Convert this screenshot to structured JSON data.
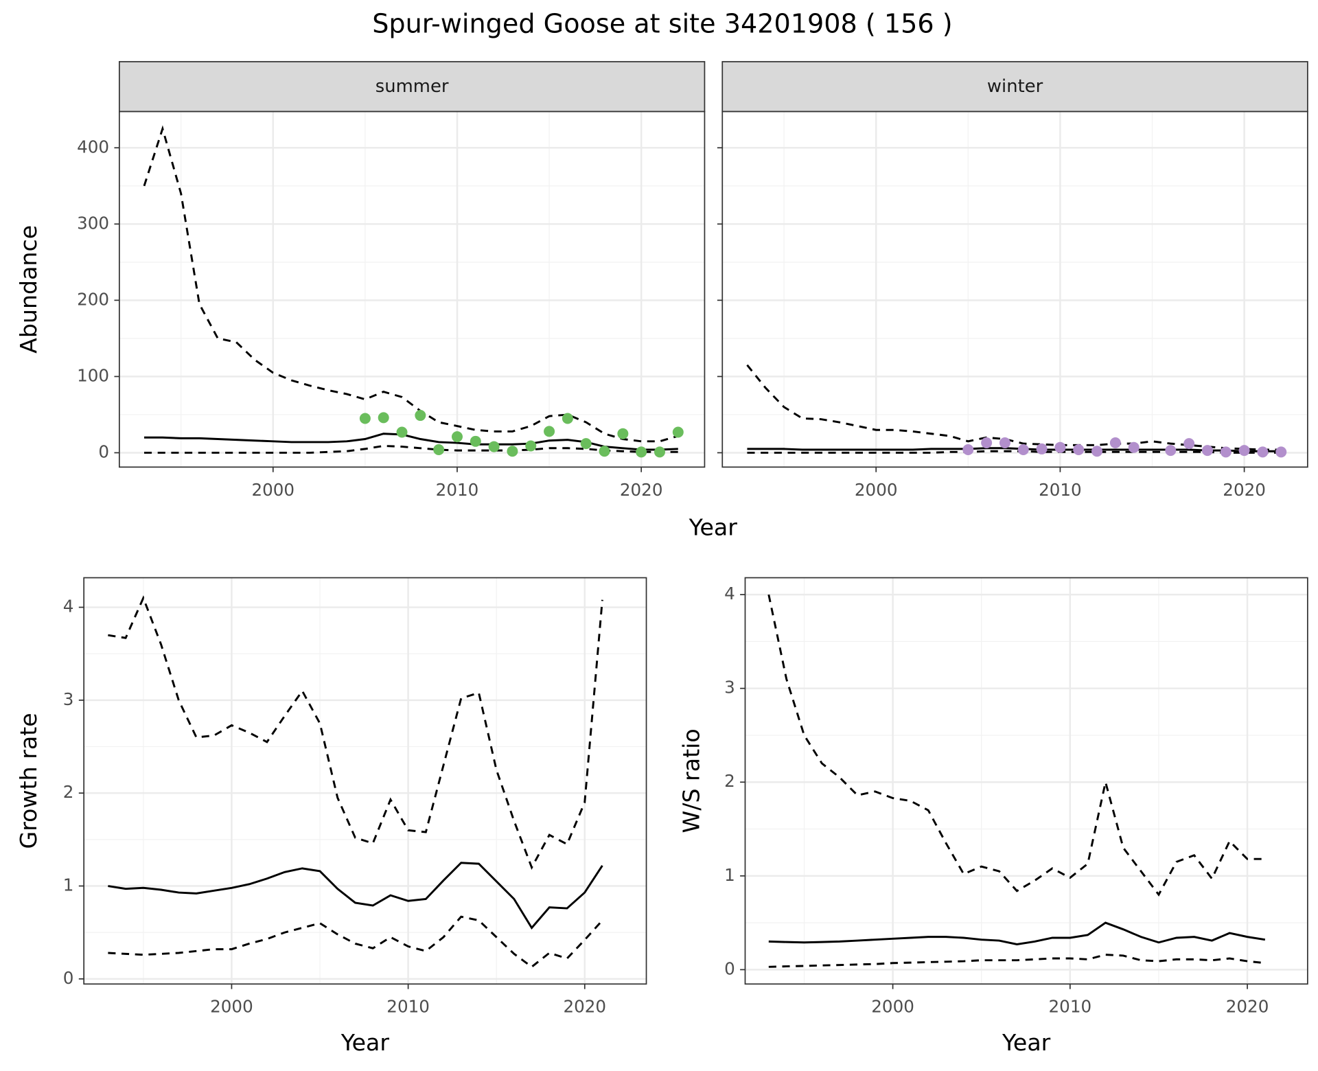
{
  "title": "Spur-winged Goose at site 34201908 ( 156 )",
  "chart_data": [
    {
      "type": "line",
      "facet": "summer",
      "xlabel": "Year",
      "ylabel": "Abundance",
      "show_yticklabels": true,
      "xlim": [
        1991.65,
        2023.44
      ],
      "ylim": [
        -18.8,
        447.6
      ],
      "xticks": [
        2000,
        2010,
        2020
      ],
      "xminor": [
        1995,
        2005,
        2015
      ],
      "yticks": [
        0,
        100,
        200,
        300,
        400
      ],
      "yminor": [
        50,
        150,
        250,
        350
      ],
      "grid": true,
      "x": [
        1993,
        1994,
        1995,
        1996,
        1997,
        1998,
        1999,
        2000,
        2001,
        2002,
        2003,
        2004,
        2005,
        2006,
        2007,
        2008,
        2009,
        2010,
        2011,
        2012,
        2013,
        2014,
        2015,
        2016,
        2017,
        2018,
        2019,
        2020,
        2021,
        2022
      ],
      "series": [
        {
          "color": "#000000",
          "dash": false,
          "values": [
            20,
            20,
            19,
            19,
            18,
            17,
            16,
            15,
            14,
            14,
            14,
            15,
            18,
            25,
            24,
            18,
            14,
            13,
            11,
            11,
            11,
            12,
            16,
            17,
            14,
            8,
            6,
            4,
            4,
            5
          ]
        },
        {
          "color": "#000000",
          "dash": true,
          "values": [
            0,
            0,
            0,
            0,
            0,
            0,
            0,
            0,
            0,
            0,
            1,
            2,
            5,
            9,
            8,
            6,
            4,
            3,
            3,
            3,
            3,
            4,
            6,
            6,
            5,
            3,
            2,
            1,
            1,
            1
          ]
        },
        {
          "color": "#000000",
          "dash": true,
          "values": [
            350,
            425,
            340,
            195,
            150,
            145,
            122,
            105,
            95,
            88,
            82,
            77,
            70,
            80,
            73,
            55,
            40,
            35,
            30,
            28,
            28,
            35,
            48,
            50,
            40,
            25,
            18,
            15,
            15,
            22
          ]
        }
      ],
      "points": {
        "color": "#6abd5c",
        "x": [
          2005,
          2006,
          2007,
          2008,
          2009,
          2010,
          2011,
          2012,
          2013,
          2014,
          2015,
          2016,
          2017,
          2018,
          2019,
          2020,
          2021,
          2022
        ],
        "values": [
          45,
          46,
          27,
          49,
          4,
          21,
          15,
          8,
          2,
          9,
          28,
          45,
          12,
          2,
          25,
          1,
          1,
          27
        ]
      }
    },
    {
      "type": "line",
      "facet": "winter",
      "show_yticklabels": false,
      "xlim": [
        1991.65,
        2023.44
      ],
      "ylim": [
        -18.8,
        447.6
      ],
      "xticks": [
        2000,
        2010,
        2020
      ],
      "xminor": [
        1995,
        2005,
        2015
      ],
      "yticks": [
        0,
        100,
        200,
        300,
        400
      ],
      "yminor": [
        50,
        150,
        250,
        350
      ],
      "grid": true,
      "x": [
        1993,
        1994,
        1995,
        1996,
        1997,
        1998,
        1999,
        2000,
        2001,
        2002,
        2003,
        2004,
        2005,
        2006,
        2007,
        2008,
        2009,
        2010,
        2011,
        2012,
        2013,
        2014,
        2015,
        2016,
        2017,
        2018,
        2019,
        2020,
        2021,
        2022
      ],
      "series": [
        {
          "color": "#000000",
          "dash": false,
          "values": [
            5,
            5,
            5,
            4,
            4,
            4,
            4,
            4,
            4,
            4,
            5,
            5,
            5,
            6,
            6,
            5,
            4,
            4,
            4,
            4,
            4,
            4,
            4,
            4,
            4,
            3,
            3,
            2,
            2,
            2
          ]
        },
        {
          "color": "#000000",
          "dash": true,
          "values": [
            0,
            0,
            0,
            0,
            0,
            0,
            0,
            0,
            0,
            0,
            0,
            1,
            1,
            2,
            2,
            2,
            1,
            1,
            1,
            1,
            1,
            1,
            1,
            1,
            1,
            1,
            0,
            0,
            0,
            0
          ]
        },
        {
          "color": "#000000",
          "dash": true,
          "values": [
            115,
            85,
            60,
            45,
            44,
            40,
            35,
            30,
            30,
            28,
            25,
            22,
            15,
            20,
            18,
            12,
            11,
            10,
            10,
            10,
            12,
            12,
            15,
            12,
            10,
            8,
            6,
            5,
            4,
            4
          ]
        }
      ],
      "points": {
        "color": "#b28fcc",
        "x": [
          2005,
          2006,
          2007,
          2008,
          2009,
          2010,
          2011,
          2012,
          2013,
          2014,
          2016,
          2017,
          2018,
          2019,
          2020,
          2021,
          2022
        ],
        "values": [
          4,
          13,
          13,
          4,
          5,
          7,
          4,
          2,
          13,
          7,
          3,
          12,
          3,
          1,
          3,
          1,
          1
        ]
      }
    },
    {
      "type": "line",
      "xlabel": "Year",
      "ylabel": "Growth rate",
      "show_yticklabels": true,
      "xlim": [
        1991.63,
        2023.49
      ],
      "ylim": [
        -0.055,
        4.318
      ],
      "xticks": [
        2000,
        2010,
        2020
      ],
      "xminor": [
        1995,
        2005,
        2015
      ],
      "yticks": [
        0,
        1,
        2,
        3,
        4
      ],
      "yminor": [
        0.5,
        1.5,
        2.5,
        3.5
      ],
      "grid": true,
      "x": [
        1993,
        1994,
        1995,
        1996,
        1997,
        1998,
        1999,
        2000,
        2001,
        2002,
        2003,
        2004,
        2005,
        2006,
        2007,
        2008,
        2009,
        2010,
        2011,
        2012,
        2013,
        2014,
        2015,
        2016,
        2017,
        2018,
        2019,
        2020,
        2021
      ],
      "series": [
        {
          "color": "#000000",
          "dash": false,
          "values": [
            1.0,
            0.97,
            0.98,
            0.96,
            0.93,
            0.92,
            0.95,
            0.98,
            1.02,
            1.08,
            1.15,
            1.19,
            1.16,
            0.97,
            0.82,
            0.79,
            0.9,
            0.84,
            0.86,
            1.06,
            1.25,
            1.24,
            1.05,
            0.86,
            0.55,
            0.77,
            0.76,
            0.93,
            1.22
          ]
        },
        {
          "color": "#000000",
          "dash": true,
          "values": [
            0.28,
            0.27,
            0.26,
            0.27,
            0.28,
            0.3,
            0.32,
            0.32,
            0.38,
            0.43,
            0.5,
            0.55,
            0.6,
            0.48,
            0.38,
            0.33,
            0.45,
            0.35,
            0.3,
            0.45,
            0.67,
            0.63,
            0.45,
            0.27,
            0.13,
            0.28,
            0.22,
            0.42,
            0.63
          ]
        },
        {
          "color": "#000000",
          "dash": true,
          "values": [
            3.7,
            3.67,
            4.1,
            3.6,
            3.0,
            2.6,
            2.62,
            2.73,
            2.65,
            2.55,
            2.83,
            3.1,
            2.75,
            1.95,
            1.52,
            1.46,
            1.93,
            1.6,
            1.58,
            2.3,
            3.02,
            3.08,
            2.25,
            1.7,
            1.2,
            1.55,
            1.45,
            1.9,
            4.08
          ]
        }
      ]
    },
    {
      "type": "line",
      "xlabel": "Year",
      "ylabel": "W/S ratio",
      "show_yticklabels": true,
      "xlim": [
        1991.67,
        2023.4
      ],
      "ylim": [
        -0.153,
        4.18
      ],
      "xticks": [
        2000,
        2010,
        2020
      ],
      "xminor": [
        1995,
        2005,
        2015
      ],
      "yticks": [
        0,
        1,
        2,
        3,
        4
      ],
      "yminor": [
        0.5,
        1.5,
        2.5,
        3.5
      ],
      "grid": true,
      "x": [
        1993,
        1994,
        1995,
        1996,
        1997,
        1998,
        1999,
        2000,
        2001,
        2002,
        2003,
        2004,
        2005,
        2006,
        2007,
        2008,
        2009,
        2010,
        2011,
        2012,
        2013,
        2014,
        2015,
        2016,
        2017,
        2018,
        2019,
        2020,
        2021
      ],
      "series": [
        {
          "color": "#000000",
          "dash": false,
          "values": [
            0.3,
            0.295,
            0.29,
            0.295,
            0.3,
            0.31,
            0.32,
            0.33,
            0.34,
            0.35,
            0.35,
            0.34,
            0.32,
            0.31,
            0.27,
            0.3,
            0.34,
            0.34,
            0.37,
            0.5,
            0.43,
            0.35,
            0.29,
            0.34,
            0.35,
            0.31,
            0.39,
            0.35,
            0.32
          ]
        },
        {
          "color": "#000000",
          "dash": true,
          "values": [
            0.03,
            0.035,
            0.04,
            0.045,
            0.05,
            0.055,
            0.06,
            0.07,
            0.075,
            0.08,
            0.085,
            0.09,
            0.1,
            0.1,
            0.1,
            0.11,
            0.12,
            0.12,
            0.11,
            0.16,
            0.15,
            0.1,
            0.09,
            0.11,
            0.11,
            0.1,
            0.12,
            0.09,
            0.07
          ]
        },
        {
          "color": "#000000",
          "dash": true,
          "values": [
            4.0,
            3.1,
            2.5,
            2.2,
            2.05,
            1.86,
            1.9,
            1.83,
            1.8,
            1.7,
            1.35,
            1.02,
            1.1,
            1.05,
            0.84,
            0.95,
            1.08,
            0.98,
            1.13,
            2.0,
            1.3,
            1.05,
            0.8,
            1.15,
            1.22,
            0.97,
            1.37,
            1.18,
            1.18
          ]
        }
      ]
    }
  ]
}
